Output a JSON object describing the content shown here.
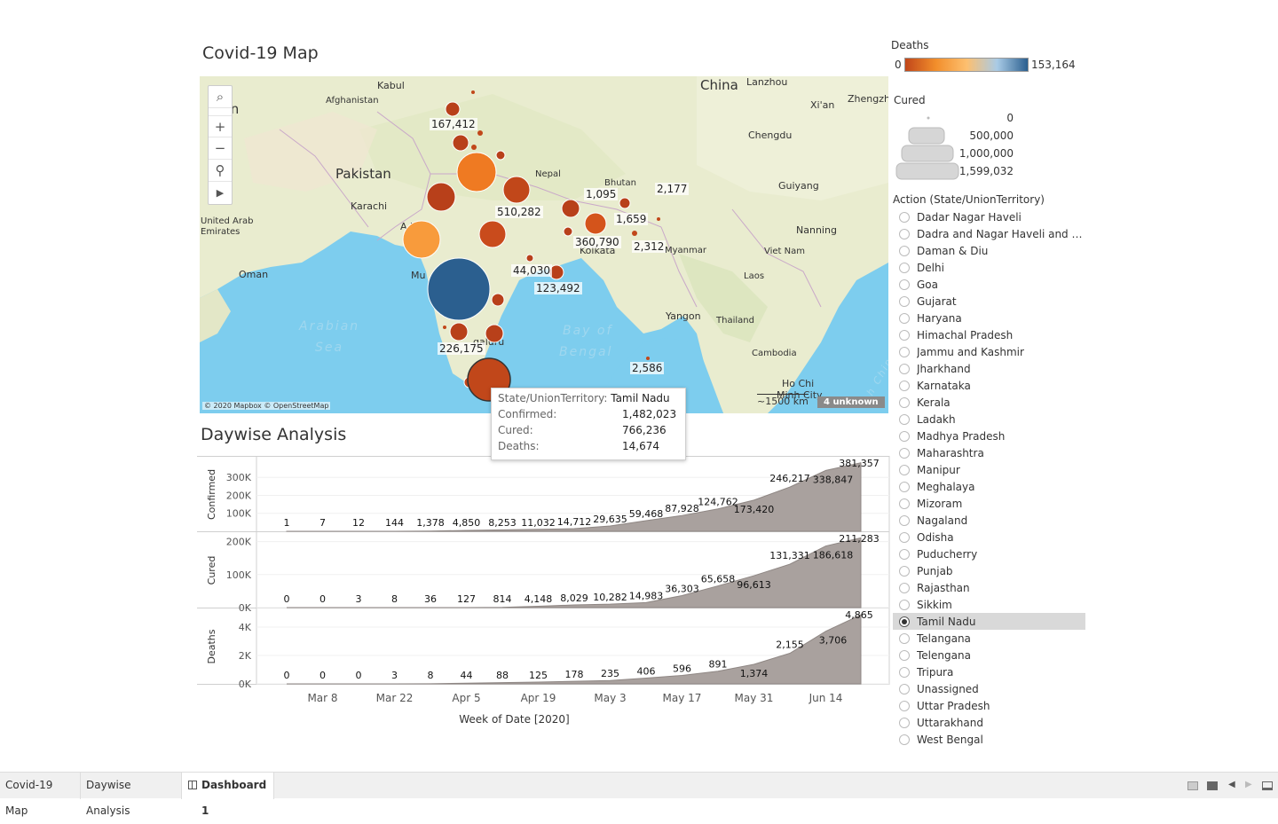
{
  "map_title": "Covid-19 Map",
  "daywise_title": "Daywise Analysis",
  "map": {
    "labels": {
      "iran": "Iran",
      "kabul": "Kabul",
      "afghanistan": "Afghanistan",
      "pakistan": "Pakistan",
      "karachi": "Karachi",
      "uae": "United Arab Emirates",
      "oman": "Oman",
      "china": "China",
      "lanzhou": "Lanzhou",
      "xian": "Xi'an",
      "zhengzhou": "Zhengzh",
      "chengdu": "Chengdu",
      "guiyang": "Guiyang",
      "nanning": "Nanning",
      "nepal": "Nepal",
      "bhutan": "Bhutan",
      "myanmar": "Myanmar",
      "vietnam": "Viet Nam",
      "laos": "Laos",
      "thailand": "Thailand",
      "yangon": "Yangon",
      "cambodia": "Cambodia",
      "hochi": "Ho Chi",
      "minhcity": "Minh City",
      "kolkata": "Kolkata",
      "mumbai": "Mu",
      "ahmedabad": "A  bad",
      "bengaluru": "galuru",
      "arabian_sea_1": "Arabian",
      "arabian_sea_2": "Sea",
      "bay_1": "Bay of",
      "bay_2": "Bengal",
      "south_china": "h China S"
    },
    "values": {
      "v1": "167,412",
      "v2": "510,282",
      "v3": "1,095",
      "v4": "2,177",
      "v5": "1,659",
      "v6": "360,790",
      "v7": "2,312",
      "v8": "44,030",
      "v9": "123,492",
      "v10": "226,175",
      "v11": "2,586"
    },
    "copyright": "© 2020 Mapbox © OpenStreetMap",
    "scale": "~1500 km",
    "unknown": "4 unknown",
    "controls": {
      "search": "⌕",
      "zoom_in": "+",
      "zoom_out": "−",
      "pin": "⚲",
      "play": "▶"
    }
  },
  "legend": {
    "deaths_title": "Deaths",
    "deaths_min": "0",
    "deaths_max": "153,164",
    "colors": [
      "#c1471a",
      "#f28e2b",
      "#fdbf6f",
      "#a9cbe6",
      "#2b5f8f"
    ],
    "cured_title": "Cured",
    "cured_values": [
      "0",
      "500,000",
      "1,000,000",
      "1,599,032"
    ]
  },
  "filter": {
    "title": "Action (State/UnionTerritory)",
    "items": [
      "Dadar Nagar Haveli",
      "Dadra and Nagar Haveli and Da...",
      "Daman & Diu",
      "Delhi",
      "Goa",
      "Gujarat",
      "Haryana",
      "Himachal Pradesh",
      "Jammu and Kashmir",
      "Jharkhand",
      "Karnataka",
      "Kerala",
      "Ladakh",
      "Madhya Pradesh",
      "Maharashtra",
      "Manipur",
      "Meghalaya",
      "Mizoram",
      "Nagaland",
      "Odisha",
      "Puducherry",
      "Punjab",
      "Rajasthan",
      "Sikkim",
      "Tamil Nadu",
      "Telangana",
      "Telengana",
      "Tripura",
      "Unassigned",
      "Uttar Pradesh",
      "Uttarakhand",
      "West Bengal"
    ],
    "selected": "Tamil Nadu"
  },
  "tooltip": {
    "k1": "State/UnionTerritory:",
    "v1": "Tamil Nadu",
    "k2": "Confirmed:",
    "v2": "1,482,023",
    "k3": "Cured:",
    "v3": "766,236",
    "k4": "Deaths:",
    "v4": "14,674"
  },
  "chart_data": {
    "type": "area",
    "xlabel": "Week of Date [2020]",
    "x_ticks": [
      "Mar 8",
      "Mar 22",
      "Apr 5",
      "Apr 19",
      "May 3",
      "May 17",
      "May 31",
      "Jun 14"
    ],
    "weeks": 17,
    "series": [
      {
        "name": "Confirmed",
        "ylim": [
          0,
          390000
        ],
        "y_ticks": [
          {
            "v": 100000,
            "l": "100K"
          },
          {
            "v": 200000,
            "l": "200K"
          },
          {
            "v": 300000,
            "l": "300K"
          }
        ],
        "values": [
          1,
          7,
          12,
          144,
          1378,
          4850,
          8253,
          11032,
          14712,
          29635,
          59468,
          87928,
          124762,
          173420,
          246217,
          338847,
          381357
        ],
        "labels": [
          "1",
          "7",
          "12",
          "144",
          "1,378",
          "4,850",
          "8,253",
          "11,032",
          "14,712",
          "29,635",
          "59,468",
          "87,928",
          "124,762",
          "173,420",
          "246,217",
          "338,847",
          "381,357"
        ]
      },
      {
        "name": "Cured",
        "ylim": [
          0,
          215000
        ],
        "y_ticks": [
          {
            "v": 0,
            "l": "0K"
          },
          {
            "v": 100000,
            "l": "100K"
          },
          {
            "v": 200000,
            "l": "200K"
          }
        ],
        "values": [
          0,
          0,
          3,
          8,
          36,
          127,
          814,
          4148,
          8029,
          10282,
          14983,
          36303,
          65658,
          96613,
          131331,
          186618,
          211283
        ],
        "labels": [
          "0",
          "0",
          "3",
          "8",
          "36",
          "127",
          "814",
          "4,148",
          "8,029",
          "10,282",
          "14,983",
          "36,303",
          "65,658",
          "96,613",
          "131,331",
          "186,618",
          "211,283"
        ]
      },
      {
        "name": "Deaths",
        "ylim": [
          0,
          5000
        ],
        "y_ticks": [
          {
            "v": 0,
            "l": "0K"
          },
          {
            "v": 2000,
            "l": "2K"
          },
          {
            "v": 4000,
            "l": "4K"
          }
        ],
        "values": [
          0,
          0,
          0,
          3,
          8,
          44,
          88,
          125,
          178,
          235,
          406,
          596,
          891,
          1374,
          2155,
          3706,
          4865
        ],
        "labels": [
          "0",
          "0",
          "0",
          "3",
          "8",
          "44",
          "88",
          "125",
          "178",
          "235",
          "406",
          "596",
          "891",
          "1,374",
          "2,155",
          "3,706",
          "4,865"
        ]
      }
    ]
  },
  "tabs": [
    "Covid-19 Map",
    "Daywise Analysis",
    "Dashboard 1"
  ],
  "active_tab": "Dashboard 1"
}
